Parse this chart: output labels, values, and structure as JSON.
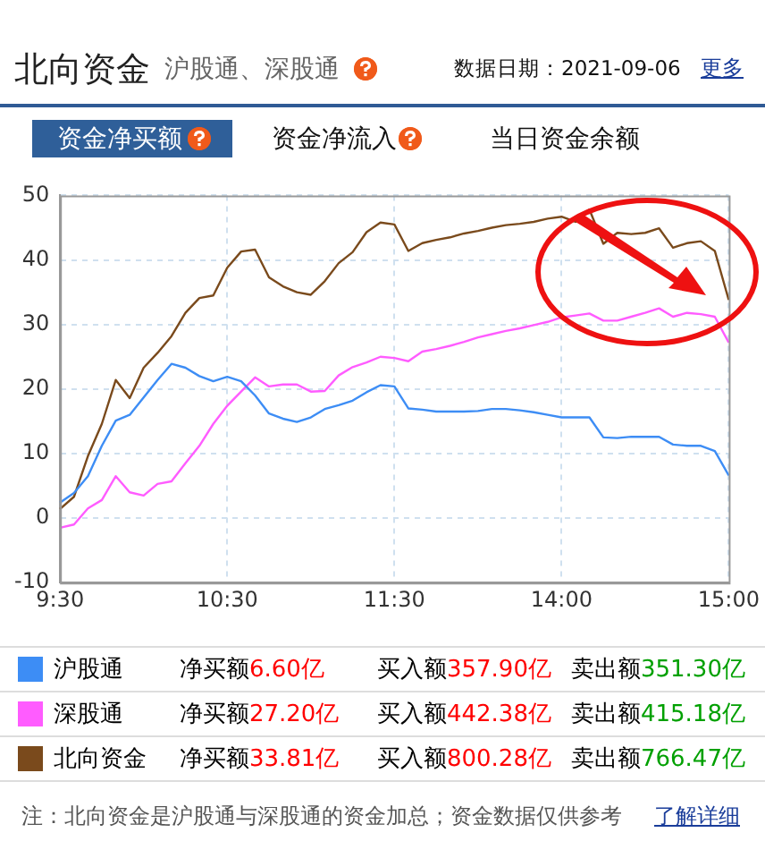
{
  "chart_data": {
    "type": "line",
    "title": "北向资金",
    "subtitle": "沪股通、深股通",
    "categories": [
      "9:30",
      null,
      null,
      null,
      null,
      null,
      null,
      null,
      null,
      null,
      null,
      null,
      "10:30",
      null,
      null,
      null,
      null,
      null,
      null,
      null,
      null,
      null,
      null,
      null,
      "11:30",
      null,
      null,
      null,
      null,
      null,
      null,
      null,
      null,
      null,
      null,
      null,
      "14:00",
      null,
      null,
      null,
      null,
      null,
      null,
      null,
      null,
      null,
      null,
      null,
      "15:00"
    ],
    "ylim": [
      -10,
      50
    ],
    "yticks": [
      -10,
      0,
      10,
      20,
      30,
      40,
      50
    ],
    "grid": true,
    "legend": "bottom",
    "marker": "none",
    "line_style": "solid",
    "series": [
      {
        "name": "沪股通",
        "color": "#3d8df5",
        "values": [
          2.4,
          3.9,
          6.5,
          11.2,
          15.1,
          16.0,
          18.7,
          21.4,
          23.9,
          23.3,
          22.0,
          21.2,
          21.9,
          21.2,
          19.0,
          16.2,
          15.4,
          14.9,
          15.6,
          16.9,
          17.5,
          18.2,
          19.5,
          20.6,
          20.4,
          17.0,
          16.8,
          16.5,
          16.5,
          16.5,
          16.6,
          16.9,
          16.9,
          16.7,
          16.4,
          16.0,
          15.6,
          15.6,
          15.6,
          12.5,
          12.4,
          12.6,
          12.6,
          12.6,
          11.4,
          11.2,
          11.2,
          10.4,
          6.6
        ]
      },
      {
        "name": "深股通",
        "color": "#ff5cff",
        "values": [
          -1.5,
          -1.0,
          1.5,
          2.8,
          6.5,
          4.0,
          3.5,
          5.3,
          5.7,
          8.5,
          11.2,
          14.6,
          17.4,
          19.6,
          21.8,
          20.4,
          20.7,
          20.7,
          19.6,
          19.7,
          22.1,
          23.4,
          24.1,
          25.0,
          24.8,
          24.3,
          25.8,
          26.2,
          26.7,
          27.3,
          28.0,
          28.5,
          29.0,
          29.4,
          29.9,
          30.4,
          31.1,
          31.4,
          31.7,
          30.6,
          30.6,
          31.2,
          31.8,
          32.5,
          31.2,
          31.8,
          31.6,
          31.2,
          27.2
        ]
      },
      {
        "name": "北向资金",
        "color": "#7a4a1c",
        "values": [
          1.4,
          3.3,
          9.6,
          14.6,
          21.4,
          18.6,
          23.3,
          25.6,
          28.2,
          31.8,
          34.1,
          34.5,
          38.8,
          41.3,
          41.6,
          37.3,
          35.9,
          35.0,
          34.6,
          36.7,
          39.5,
          41.2,
          44.3,
          45.8,
          45.5,
          41.4,
          42.6,
          43.1,
          43.5,
          44.1,
          44.5,
          45.0,
          45.4,
          45.6,
          45.9,
          46.4,
          46.7,
          45.9,
          47.8,
          42.5,
          44.2,
          44.0,
          44.2,
          44.9,
          41.9,
          42.6,
          42.9,
          41.4,
          33.8
        ]
      }
    ],
    "annotations": [
      "数据日期：2021-09-06",
      "更多",
      "资金净买额",
      "资金净流入",
      "当日资金余额",
      "净买额6.60亿",
      "买入额357.90亿",
      "卖出额351.30亿",
      "净买额27.20亿",
      "买入额442.38亿",
      "卖出额415.18亿",
      "净买额33.81亿",
      "买入额800.28亿",
      "卖出额766.47亿",
      "注：北向资金是沪股通与深股通的资金加总；资金数据仅供参考",
      "了解详细"
    ]
  }
}
